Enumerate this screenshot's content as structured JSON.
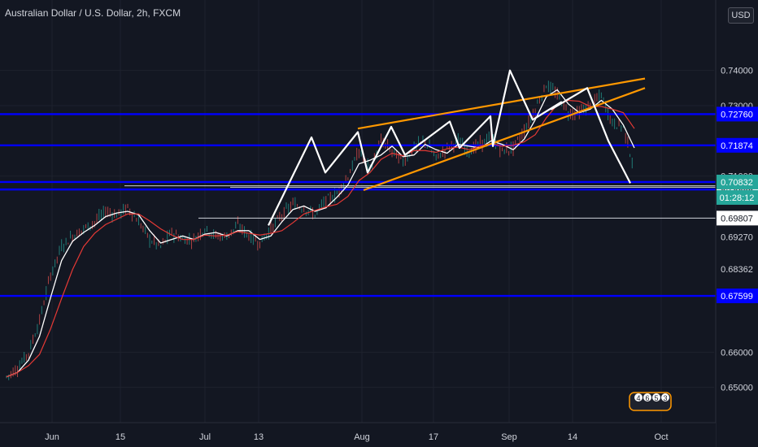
{
  "title": "Australian Dollar / U.S. Dollar, 2h, FXCM",
  "currency": "USD",
  "colors": {
    "background": "#131722",
    "grid": "#1e222d",
    "level_line": "#0000ff",
    "price_line": "#ffffff",
    "wedge": "#ff9800",
    "ma_fast": "#ffffff",
    "ma_slow": "#e53935",
    "candles_up": "#26a69a",
    "candles_down": "#ef5350",
    "current_label": "#26a69a"
  },
  "chart_data": {
    "type": "line",
    "ylim": [
      0.64,
      0.76
    ],
    "grid": true,
    "x_ticks": [
      "Jun",
      "15",
      "Jul",
      "13",
      "Aug",
      "17",
      "Sep",
      "14",
      "Oct"
    ],
    "y_ticks": [
      "0.74000",
      "0.73000",
      "0.71000",
      "0.66000",
      "0.65000"
    ],
    "series": [
      {
        "role": "price",
        "values": [
          0.653,
          0.6555,
          0.66,
          0.669,
          0.682,
          0.69,
          0.693,
          0.695,
          0.697,
          0.7,
          0.699,
          0.701,
          0.697,
          0.692,
          0.69,
          0.694,
          0.692,
          0.692,
          0.695,
          0.693,
          0.693,
          0.696,
          0.693,
          0.691,
          0.695,
          0.699,
          0.702,
          0.701,
          0.699,
          0.703,
          0.705,
          0.71,
          0.717,
          0.712,
          0.72,
          0.717,
          0.714,
          0.718,
          0.72,
          0.715,
          0.718,
          0.72,
          0.717,
          0.719,
          0.721,
          0.717,
          0.718,
          0.723,
          0.729,
          0.736,
          0.733,
          0.728,
          0.728,
          0.73,
          0.733,
          0.725,
          0.724,
          0.712
        ]
      },
      {
        "role": "zigzag",
        "values": [
          0.696,
          0.721,
          0.711,
          0.7225,
          0.711,
          0.724,
          0.716,
          0.7255,
          0.718,
          0.727,
          0.7185,
          0.74,
          0.726,
          0.731,
          0.729,
          0.735,
          0.72,
          0.708
        ]
      }
    ],
    "annotations": {
      "horizontal_levels": [
        "0.72760",
        "0.71874",
        "0.70832",
        "0.70620",
        "0.67599"
      ],
      "support_lines": [
        "0.70725",
        "0.70683",
        "0.69807"
      ],
      "other_price_labels": [
        "0.69270",
        "0.68362"
      ],
      "wedge": "rising wedge",
      "current_price": "0.70832",
      "countdown": "01:28:12",
      "badge_values": [
        "4",
        "6",
        "5",
        "3"
      ]
    }
  }
}
